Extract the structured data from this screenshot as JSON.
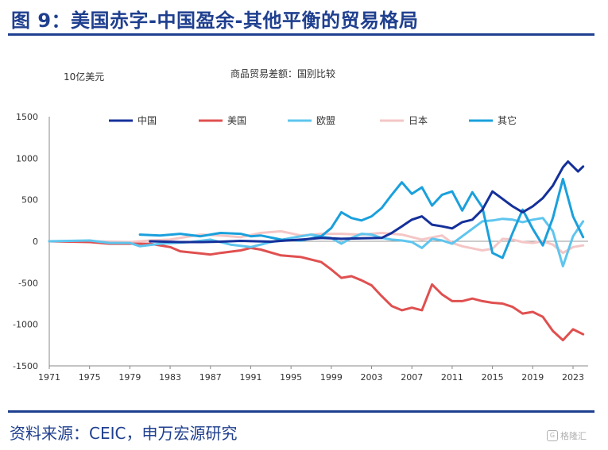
{
  "header": {
    "title": "图 9：美国赤字-中国盈余-其他平衡的贸易格局"
  },
  "footer": {
    "source": "资料来源：CEIC，申万宏源研究"
  },
  "watermark": {
    "text": "格隆汇",
    "icon": "G"
  },
  "chart_data": {
    "type": "line",
    "title": "商品贸易差额：国别比较",
    "ylabel": "10亿美元",
    "ylim": [
      -1500,
      1500
    ],
    "xlim": [
      1971,
      2024.5
    ],
    "yticks": [
      1500,
      1000,
      500,
      0,
      -500,
      -1000,
      -1500
    ],
    "xticks": [
      1971,
      1975,
      1979,
      1983,
      1987,
      1991,
      1995,
      1999,
      2003,
      2007,
      2011,
      2015,
      2019,
      2023
    ],
    "legend_position": "top",
    "grid": false,
    "series": [
      {
        "name": "中国",
        "color": "#14309a",
        "points": [
          [
            1981,
            0
          ],
          [
            1984,
            -10
          ],
          [
            1986,
            -10
          ],
          [
            1988,
            -5
          ],
          [
            1990,
            5
          ],
          [
            1993,
            -5
          ],
          [
            1994,
            5
          ],
          [
            1996,
            20
          ],
          [
            1998,
            40
          ],
          [
            2000,
            30
          ],
          [
            2002,
            35
          ],
          [
            2004,
            40
          ],
          [
            2005,
            100
          ],
          [
            2006,
            180
          ],
          [
            2007,
            260
          ],
          [
            2008,
            300
          ],
          [
            2009,
            200
          ],
          [
            2010,
            180
          ],
          [
            2011,
            155
          ],
          [
            2012,
            230
          ],
          [
            2013,
            260
          ],
          [
            2014,
            380
          ],
          [
            2015,
            600
          ],
          [
            2016,
            510
          ],
          [
            2017,
            420
          ],
          [
            2018,
            350
          ],
          [
            2019,
            420
          ],
          [
            2020,
            520
          ],
          [
            2021,
            670
          ],
          [
            2022,
            890
          ],
          [
            2022.5,
            960
          ],
          [
            2023,
            900
          ],
          [
            2023.5,
            840
          ],
          [
            2024,
            900
          ]
        ]
      },
      {
        "name": "美国",
        "color": "#e05050",
        "points": [
          [
            1971,
            0
          ],
          [
            1975,
            -10
          ],
          [
            1977,
            -30
          ],
          [
            1979,
            -30
          ],
          [
            1981,
            -30
          ],
          [
            1983,
            -70
          ],
          [
            1984,
            -120
          ],
          [
            1987,
            -160
          ],
          [
            1988,
            -140
          ],
          [
            1990,
            -110
          ],
          [
            1991,
            -80
          ],
          [
            1992,
            -100
          ],
          [
            1994,
            -170
          ],
          [
            1996,
            -190
          ],
          [
            1998,
            -250
          ],
          [
            1999,
            -340
          ],
          [
            2000,
            -440
          ],
          [
            2001,
            -420
          ],
          [
            2002,
            -470
          ],
          [
            2003,
            -530
          ],
          [
            2004,
            -660
          ],
          [
            2005,
            -780
          ],
          [
            2006,
            -830
          ],
          [
            2007,
            -800
          ],
          [
            2008,
            -830
          ],
          [
            2009,
            -520
          ],
          [
            2010,
            -640
          ],
          [
            2011,
            -720
          ],
          [
            2012,
            -720
          ],
          [
            2013,
            -690
          ],
          [
            2014,
            -720
          ],
          [
            2015,
            -740
          ],
          [
            2016,
            -750
          ],
          [
            2017,
            -790
          ],
          [
            2018,
            -870
          ],
          [
            2019,
            -850
          ],
          [
            2020,
            -910
          ],
          [
            2021,
            -1080
          ],
          [
            2022,
            -1190
          ],
          [
            2023,
            -1060
          ],
          [
            2024,
            -1120
          ]
        ]
      },
      {
        "name": "欧盟",
        "color": "#5ec5ee",
        "points": [
          [
            1971,
            0
          ],
          [
            1975,
            10
          ],
          [
            1977,
            -20
          ],
          [
            1979,
            -20
          ],
          [
            1980,
            -60
          ],
          [
            1982,
            -30
          ],
          [
            1985,
            -10
          ],
          [
            1987,
            20
          ],
          [
            1989,
            -40
          ],
          [
            1991,
            -70
          ],
          [
            1993,
            -10
          ],
          [
            1995,
            40
          ],
          [
            1997,
            80
          ],
          [
            1999,
            40
          ],
          [
            2000,
            -30
          ],
          [
            2001,
            40
          ],
          [
            2002,
            90
          ],
          [
            2003,
            80
          ],
          [
            2004,
            40
          ],
          [
            2005,
            20
          ],
          [
            2006,
            10
          ],
          [
            2007,
            -10
          ],
          [
            2008,
            -80
          ],
          [
            2009,
            30
          ],
          [
            2010,
            10
          ],
          [
            2011,
            -30
          ],
          [
            2012,
            60
          ],
          [
            2013,
            150
          ],
          [
            2014,
            240
          ],
          [
            2015,
            250
          ],
          [
            2016,
            270
          ],
          [
            2017,
            260
          ],
          [
            2018,
            230
          ],
          [
            2019,
            260
          ],
          [
            2020,
            280
          ],
          [
            2021,
            120
          ],
          [
            2022,
            -300
          ],
          [
            2023,
            60
          ],
          [
            2024,
            240
          ]
        ]
      },
      {
        "name": "日本",
        "color": "#f4c6c6",
        "points": [
          [
            1971,
            0
          ],
          [
            1975,
            0
          ],
          [
            1979,
            -10
          ],
          [
            1981,
            10
          ],
          [
            1983,
            20
          ],
          [
            1986,
            80
          ],
          [
            1988,
            70
          ],
          [
            1990,
            50
          ],
          [
            1992,
            100
          ],
          [
            1994,
            120
          ],
          [
            1996,
            70
          ],
          [
            1998,
            90
          ],
          [
            2000,
            90
          ],
          [
            2002,
            80
          ],
          [
            2004,
            100
          ],
          [
            2006,
            80
          ],
          [
            2008,
            20
          ],
          [
            2010,
            70
          ],
          [
            2011,
            -20
          ],
          [
            2012,
            -60
          ],
          [
            2014,
            -110
          ],
          [
            2015,
            -90
          ],
          [
            2016,
            30
          ],
          [
            2017,
            20
          ],
          [
            2018,
            -10
          ],
          [
            2019,
            -20
          ],
          [
            2020,
            0
          ],
          [
            2021,
            -40
          ],
          [
            2022,
            -140
          ],
          [
            2023,
            -70
          ],
          [
            2024,
            -50
          ]
        ]
      },
      {
        "name": "其它",
        "color": "#1aa0dc",
        "points": [
          [
            1980,
            80
          ],
          [
            1982,
            70
          ],
          [
            1984,
            90
          ],
          [
            1986,
            60
          ],
          [
            1988,
            100
          ],
          [
            1990,
            90
          ],
          [
            1991,
            60
          ],
          [
            1992,
            70
          ],
          [
            1994,
            20
          ],
          [
            1996,
            10
          ],
          [
            1998,
            60
          ],
          [
            1999,
            160
          ],
          [
            2000,
            350
          ],
          [
            2001,
            280
          ],
          [
            2002,
            250
          ],
          [
            2003,
            300
          ],
          [
            2004,
            400
          ],
          [
            2005,
            560
          ],
          [
            2006,
            710
          ],
          [
            2007,
            570
          ],
          [
            2008,
            650
          ],
          [
            2009,
            430
          ],
          [
            2010,
            560
          ],
          [
            2011,
            600
          ],
          [
            2012,
            370
          ],
          [
            2013,
            590
          ],
          [
            2014,
            410
          ],
          [
            2015,
            -140
          ],
          [
            2016,
            -200
          ],
          [
            2017,
            100
          ],
          [
            2018,
            380
          ],
          [
            2019,
            150
          ],
          [
            2020,
            -50
          ],
          [
            2021,
            280
          ],
          [
            2022,
            750
          ],
          [
            2023,
            300
          ],
          [
            2024,
            50
          ]
        ]
      }
    ]
  }
}
